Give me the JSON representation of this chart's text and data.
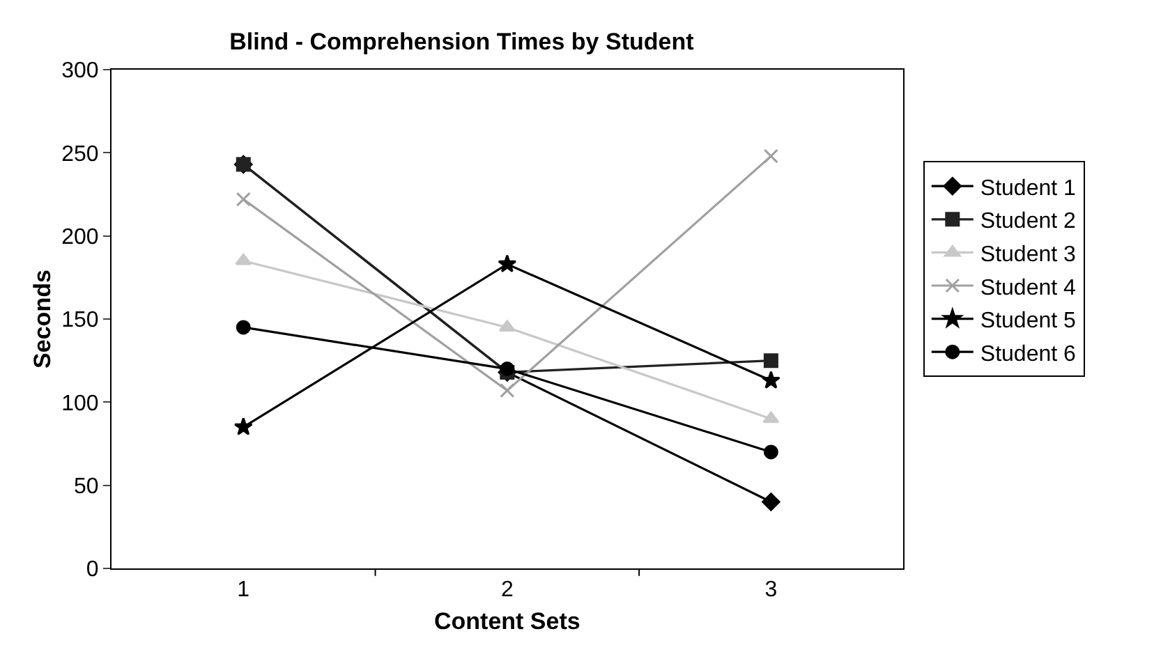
{
  "chart_data": {
    "type": "line",
    "title": "Blind - Comprehension Times by Student",
    "xlabel": "Content Sets",
    "ylabel": "Seconds",
    "categories": [
      "1",
      "2",
      "3"
    ],
    "ylim": [
      0,
      300
    ],
    "yticks": [
      0,
      50,
      100,
      150,
      200,
      250,
      300
    ],
    "grid": false,
    "legend": "right",
    "line_style": "solid",
    "series": [
      {
        "name": "Student 1",
        "color": "#000000",
        "marker": "diamond",
        "values": [
          243,
          118,
          40
        ]
      },
      {
        "name": "Student 2",
        "color": "#222222",
        "marker": "square",
        "values": [
          243,
          118,
          125
        ]
      },
      {
        "name": "Student 3",
        "color": "#c8c8c8",
        "marker": "triangle",
        "values": [
          185,
          145,
          90
        ]
      },
      {
        "name": "Student 4",
        "color": "#a0a0a0",
        "marker": "cross",
        "values": [
          222,
          107,
          248
        ]
      },
      {
        "name": "Student 5",
        "color": "#000000",
        "marker": "star",
        "values": [
          85,
          183,
          113
        ]
      },
      {
        "name": "Student 6",
        "color": "#000000",
        "marker": "circle",
        "values": [
          145,
          120,
          70
        ]
      }
    ]
  }
}
